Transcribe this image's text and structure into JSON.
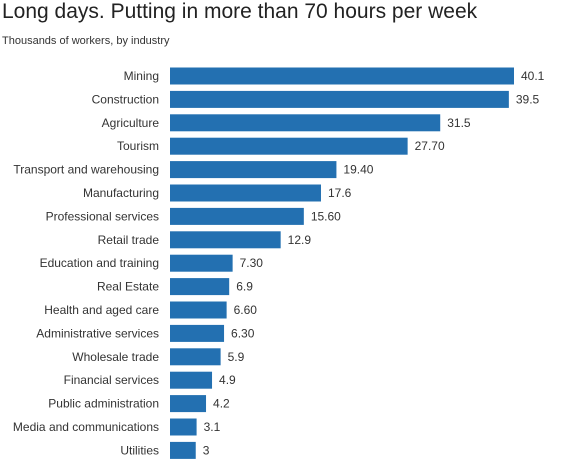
{
  "title": "Long days. Putting in more than 70 hours per week",
  "subtitle": "Thousands of workers, by industry",
  "chart_data": {
    "type": "bar",
    "orientation": "horizontal",
    "title": "Long days. Putting in more than 70 hours per week",
    "subtitle": "Thousands of workers, by industry",
    "bar_color": "#2370b1",
    "xlim": [
      0,
      40.1
    ],
    "grid": false,
    "categories": [
      "Mining",
      "Construction",
      "Agriculture",
      "Tourism",
      "Transport and warehousing",
      "Manufacturing",
      "Professional services",
      "Retail trade",
      "Education and training",
      "Real Estate",
      "Health  and aged care",
      "Administrative services",
      "Wholesale trade",
      "Financial services",
      "Public administration",
      "Media and communications",
      "Utilities"
    ],
    "values": [
      40.1,
      39.5,
      31.5,
      27.7,
      19.4,
      17.6,
      15.6,
      12.9,
      7.3,
      6.9,
      6.6,
      6.3,
      5.9,
      4.9,
      4.2,
      3.1,
      3
    ],
    "value_labels": [
      "40.1",
      "39.5",
      "31.5",
      "27.70",
      "19.40",
      "17.6",
      "15.60",
      "12.9",
      "7.30",
      "6.9",
      "6.60",
      "6.30",
      "5.9",
      "4.9",
      "4.2",
      "3.1",
      "3"
    ]
  }
}
